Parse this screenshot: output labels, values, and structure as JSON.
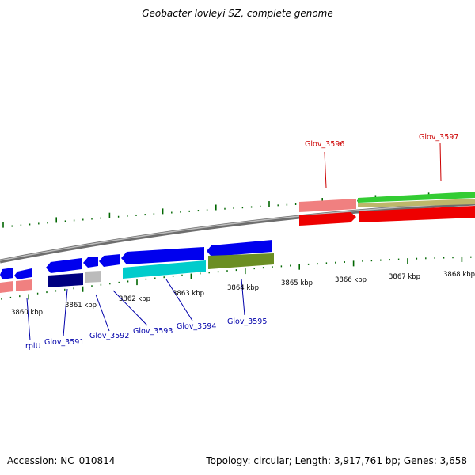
{
  "title": "Geobacter lovleyi SZ, complete genome",
  "footer": {
    "accession": "Accession: NC_010814",
    "topology": "Topology: circular; Length: 3,917,761 bp; Genes: 3,658"
  },
  "scale_labels": [
    "3860 kbp",
    "3861 kbp",
    "3862 kbp",
    "3863 kbp",
    "3864 kbp",
    "3865 kbp",
    "3866 kbp",
    "3867 kbp",
    "3868 kbp"
  ],
  "genes_forward": [
    "Glov_3596",
    "Glov_3597"
  ],
  "genes_reverse": [
    "rplU",
    "Glov_3591",
    "Glov_3592",
    "Glov_3593",
    "Glov_3594",
    "Glov_3595"
  ],
  "colors": {
    "forward_label": "#cc0000",
    "reverse_label": "#0000aa",
    "tick": "#006600",
    "backbone": "#888888",
    "blue_arrow": "#0000ee",
    "navy_block": "#000080",
    "cyan_block": "#00cccc",
    "olive_block": "#6b8e23",
    "pink_block": "#f08080",
    "red_arrow": "#ee0000",
    "green_arrow": "#33cc33",
    "khaki_block": "#bdb76b",
    "gray_block": "#bbbbbb"
  }
}
